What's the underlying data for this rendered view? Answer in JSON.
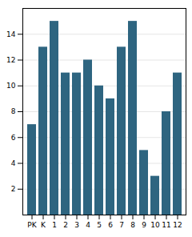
{
  "chart_data": {
    "type": "bar",
    "categories": [
      "PK",
      "K",
      "1",
      "2",
      "3",
      "4",
      "5",
      "6",
      "7",
      "8",
      "9",
      "10",
      "11",
      "12"
    ],
    "values": [
      7,
      13,
      15,
      11,
      11,
      12,
      10,
      9,
      13,
      15,
      5,
      3,
      8,
      11
    ],
    "color": "#2e6580",
    "ylim": [
      0,
      16
    ],
    "yticks": [
      2,
      4,
      6,
      8,
      10,
      12,
      14
    ],
    "grid": true
  }
}
